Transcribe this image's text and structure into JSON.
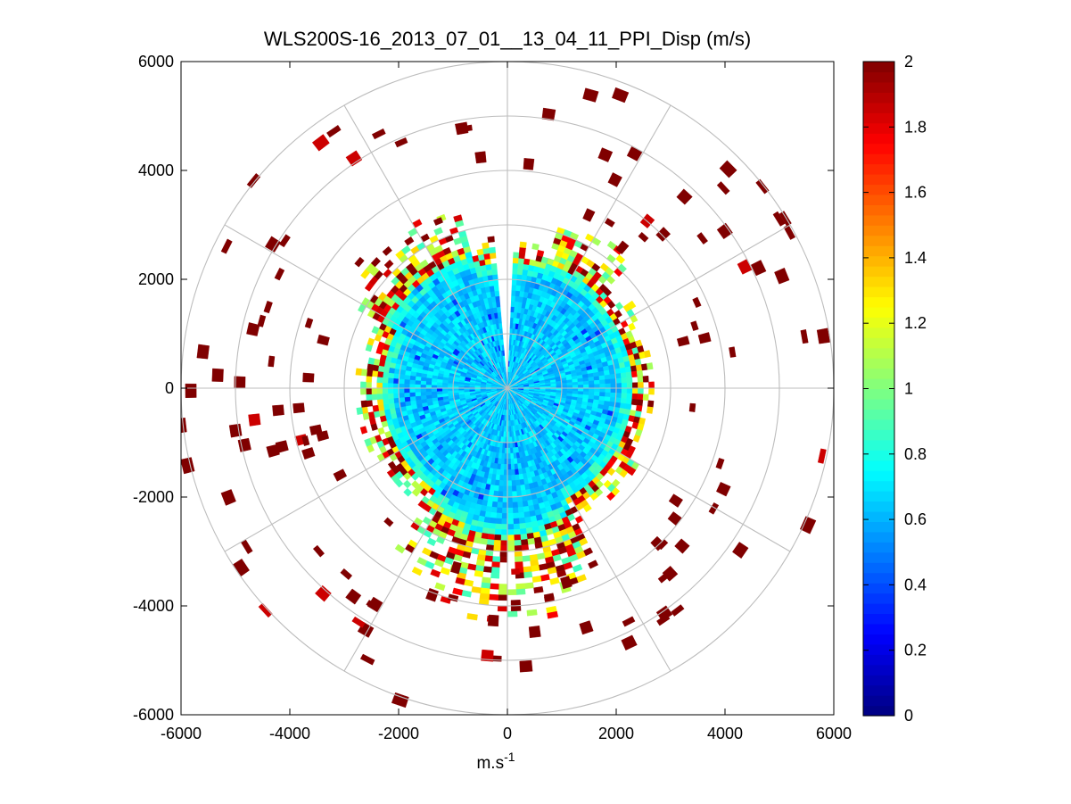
{
  "chart_data": {
    "type": "heatmap",
    "projection": "polar-ppi",
    "title": "WLS200S-16_2013_07_01__13_04_11_PPI_Disp (m/s)",
    "xlabel": "m.s-1",
    "xlabel_parts": {
      "base": "m.s",
      "sup": "-1"
    },
    "ylabel": "",
    "xlim": [
      -6000,
      6000
    ],
    "ylim": [
      -6000,
      6000
    ],
    "x_ticks": [
      "-6000",
      "-4000",
      "-2000",
      "0",
      "2000",
      "4000",
      "6000"
    ],
    "y_ticks": [
      "6000",
      "4000",
      "2000",
      "0",
      "-2000",
      "-4000",
      "-6000"
    ],
    "range_rings": [
      1000,
      2000,
      3000,
      4000,
      5000,
      6000
    ],
    "spoke_angles_deg": [
      0,
      30,
      60,
      90,
      120,
      150,
      180,
      210,
      240,
      270,
      300,
      330
    ],
    "grid": true,
    "colorbar": {
      "range": [
        0,
        2
      ],
      "ticks": [
        "0",
        "0.2",
        "0.4",
        "0.6",
        "0.8",
        "1",
        "1.2",
        "1.4",
        "1.6",
        "1.8",
        "2"
      ],
      "colormap": "jet"
    },
    "data_description": {
      "core_region": {
        "range_max_m": 2300,
        "dominant_value": 0.65,
        "min_value": 0.3
      },
      "transition_band": {
        "range_m": [
          2300,
          3200
        ],
        "values": [
          0.9,
          1.1,
          1.3,
          1.8,
          2.0
        ]
      },
      "sparse_far_returns": {
        "range_m": [
          3200,
          6000
        ],
        "value": 2.0
      },
      "data_gap_azimuth_deg": [
        -5,
        1
      ],
      "south_sector_extended_returns_to_m": 4000
    }
  },
  "colors": {
    "grid": "#bdbdbd",
    "axis": "#000000",
    "background": "#ffffff"
  }
}
